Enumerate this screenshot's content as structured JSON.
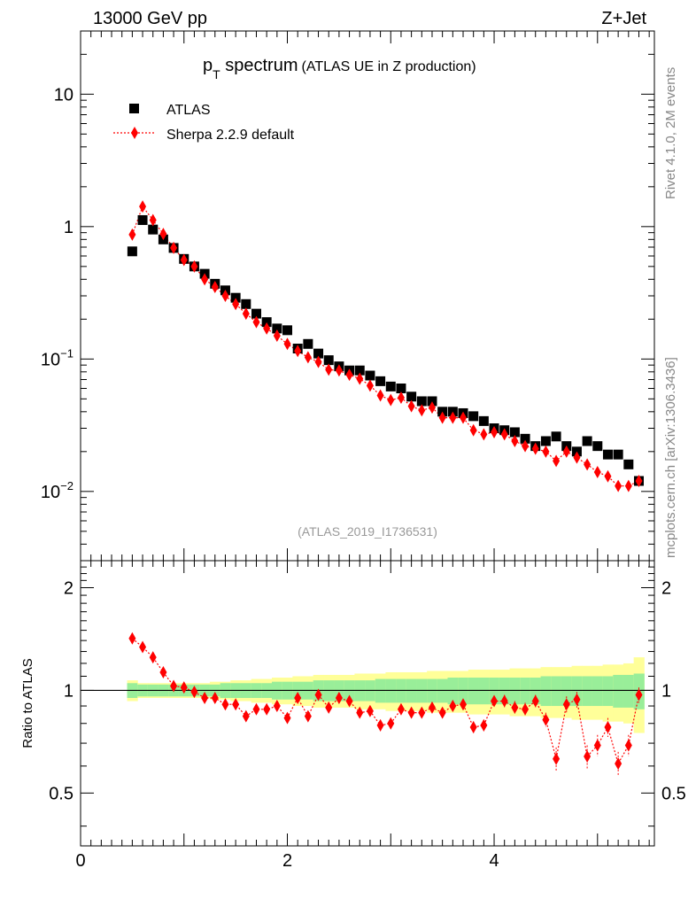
{
  "header": {
    "left": "13000 GeV pp",
    "right": "Z+Jet"
  },
  "side_labels": {
    "rivet": "Rivet 4.1.0,  2M events",
    "mcplots": "mcplots.cern.ch [arXiv:1306.3436]"
  },
  "colors": {
    "data": "#000000",
    "mc": "#ff0000",
    "band_outer": "#ffff99",
    "band_inner": "#99ee99",
    "watermark": "#999999"
  },
  "chart_data": [
    {
      "type": "scatter",
      "title_main": "p",
      "title_sub": "T",
      "title_rest": " spectrum",
      "title_extra": "(ATLAS UE in Z production)",
      "watermark": "(ATLAS_2019_I1736531)",
      "yscale": "log",
      "xlim": [
        0,
        5.55
      ],
      "ylim": [
        0.003,
        30
      ],
      "ytick_labels": [
        {
          "value": 10,
          "base": "10",
          "exp": ""
        },
        {
          "value": 1,
          "base": "1",
          "exp": ""
        },
        {
          "value": 0.1,
          "base": "10",
          "exp": "−1"
        },
        {
          "value": 0.01,
          "base": "10",
          "exp": "−2"
        }
      ],
      "legend": [
        "ATLAS",
        "Sherpa 2.2.9 default"
      ],
      "legend_position": "top-left",
      "x": [
        0.5,
        0.6,
        0.7,
        0.8,
        0.9,
        1.0,
        1.1,
        1.2,
        1.3,
        1.4,
        1.5,
        1.6,
        1.7,
        1.8,
        1.9,
        2.0,
        2.1,
        2.2,
        2.3,
        2.4,
        2.5,
        2.6,
        2.7,
        2.8,
        2.9,
        3.0,
        3.1,
        3.2,
        3.3,
        3.4,
        3.5,
        3.6,
        3.7,
        3.8,
        3.9,
        4.0,
        4.1,
        4.2,
        4.3,
        4.4,
        4.5,
        4.6,
        4.7,
        4.8,
        4.9,
        5.0,
        5.1,
        5.2,
        5.3,
        5.4
      ],
      "series": [
        {
          "name": "ATLAS",
          "marker": "square",
          "values": [
            0.65,
            1.12,
            0.95,
            0.8,
            0.69,
            0.57,
            0.5,
            0.44,
            0.37,
            0.33,
            0.29,
            0.26,
            0.22,
            0.19,
            0.17,
            0.165,
            0.12,
            0.13,
            0.11,
            0.098,
            0.088,
            0.082,
            0.082,
            0.075,
            0.068,
            0.062,
            0.06,
            0.052,
            0.048,
            0.048,
            0.04,
            0.04,
            0.039,
            0.037,
            0.034,
            0.03,
            0.029,
            0.028,
            0.025,
            0.022,
            0.024,
            0.026,
            0.022,
            0.02,
            0.024,
            0.022,
            0.019,
            0.019,
            0.016,
            0.012
          ]
        },
        {
          "name": "Sherpa 2.2.9 default",
          "marker": "diamond",
          "values": [
            0.87,
            1.42,
            1.12,
            0.88,
            0.69,
            0.56,
            0.5,
            0.4,
            0.35,
            0.3,
            0.26,
            0.22,
            0.19,
            0.17,
            0.15,
            0.13,
            0.115,
            0.103,
            0.095,
            0.083,
            0.082,
            0.076,
            0.071,
            0.063,
            0.053,
            0.049,
            0.051,
            0.044,
            0.041,
            0.043,
            0.036,
            0.036,
            0.036,
            0.029,
            0.027,
            0.028,
            0.027,
            0.024,
            0.022,
            0.021,
            0.02,
            0.017,
            0.02,
            0.018,
            0.016,
            0.014,
            0.013,
            0.011,
            0.011,
            0.012
          ]
        }
      ]
    },
    {
      "type": "scatter",
      "ylabel": "Ratio to ATLAS",
      "xlim": [
        0,
        5.55
      ],
      "ylim": [
        0.35,
        2.4
      ],
      "yscale": "log",
      "xtick_labels": [
        {
          "value": 0,
          "label": "0"
        },
        {
          "value": 2,
          "label": "2"
        },
        {
          "value": 4,
          "label": "4"
        }
      ],
      "ytick_labels": [
        {
          "value": 2,
          "label": "2"
        },
        {
          "value": 1,
          "label": "1"
        },
        {
          "value": 0.5,
          "label": "0.5"
        }
      ],
      "reference_line": 1,
      "x": [
        0.5,
        0.6,
        0.7,
        0.8,
        0.9,
        1.0,
        1.1,
        1.2,
        1.3,
        1.4,
        1.5,
        1.6,
        1.7,
        1.8,
        1.9,
        2.0,
        2.1,
        2.2,
        2.3,
        2.4,
        2.5,
        2.6,
        2.7,
        2.8,
        2.9,
        3.0,
        3.1,
        3.2,
        3.3,
        3.4,
        3.5,
        3.6,
        3.7,
        3.8,
        3.9,
        4.0,
        4.1,
        4.2,
        4.3,
        4.4,
        4.5,
        4.6,
        4.7,
        4.8,
        4.9,
        5.0,
        5.1,
        5.2,
        5.3,
        5.4
      ],
      "series": [
        {
          "name": "Sherpa 2.2.9 default / ATLAS",
          "values": [
            1.42,
            1.34,
            1.25,
            1.13,
            1.03,
            1.02,
            0.99,
            0.95,
            0.95,
            0.91,
            0.91,
            0.84,
            0.88,
            0.88,
            0.9,
            0.83,
            0.95,
            0.84,
            0.97,
            0.89,
            0.95,
            0.93,
            0.86,
            0.87,
            0.79,
            0.8,
            0.88,
            0.86,
            0.86,
            0.89,
            0.86,
            0.9,
            0.91,
            0.78,
            0.79,
            0.93,
            0.93,
            0.89,
            0.88,
            0.93,
            0.82,
            0.63,
            0.91,
            0.94,
            0.64,
            0.69,
            0.78,
            0.61,
            0.69,
            0.97
          ],
          "errors": [
            0.02,
            0.02,
            0.02,
            0.02,
            0.02,
            0.02,
            0.02,
            0.02,
            0.02,
            0.02,
            0.02,
            0.02,
            0.02,
            0.02,
            0.02,
            0.02,
            0.02,
            0.02,
            0.02,
            0.02,
            0.02,
            0.02,
            0.02,
            0.02,
            0.03,
            0.03,
            0.03,
            0.03,
            0.03,
            0.03,
            0.03,
            0.03,
            0.03,
            0.03,
            0.03,
            0.03,
            0.04,
            0.04,
            0.04,
            0.04,
            0.04,
            0.05,
            0.05,
            0.05,
            0.05,
            0.05,
            0.05,
            0.05,
            0.05,
            0.05
          ]
        }
      ],
      "band_inner_halfwidth": [
        0.05,
        0.04,
        0.04,
        0.04,
        0.04,
        0.04,
        0.04,
        0.04,
        0.04,
        0.05,
        0.05,
        0.05,
        0.05,
        0.05,
        0.06,
        0.06,
        0.06,
        0.06,
        0.07,
        0.07,
        0.07,
        0.07,
        0.07,
        0.07,
        0.08,
        0.08,
        0.08,
        0.08,
        0.08,
        0.08,
        0.08,
        0.09,
        0.09,
        0.09,
        0.09,
        0.09,
        0.09,
        0.09,
        0.09,
        0.09,
        0.1,
        0.1,
        0.1,
        0.1,
        0.1,
        0.1,
        0.1,
        0.11,
        0.11,
        0.12
      ],
      "band_outer_halfwidth": [
        0.07,
        0.05,
        0.05,
        0.05,
        0.05,
        0.05,
        0.05,
        0.05,
        0.06,
        0.06,
        0.07,
        0.07,
        0.08,
        0.08,
        0.09,
        0.09,
        0.1,
        0.1,
        0.11,
        0.11,
        0.11,
        0.11,
        0.12,
        0.12,
        0.12,
        0.13,
        0.13,
        0.13,
        0.13,
        0.14,
        0.14,
        0.14,
        0.14,
        0.15,
        0.15,
        0.15,
        0.15,
        0.16,
        0.16,
        0.16,
        0.17,
        0.17,
        0.17,
        0.18,
        0.18,
        0.18,
        0.19,
        0.19,
        0.2,
        0.25
      ]
    }
  ]
}
